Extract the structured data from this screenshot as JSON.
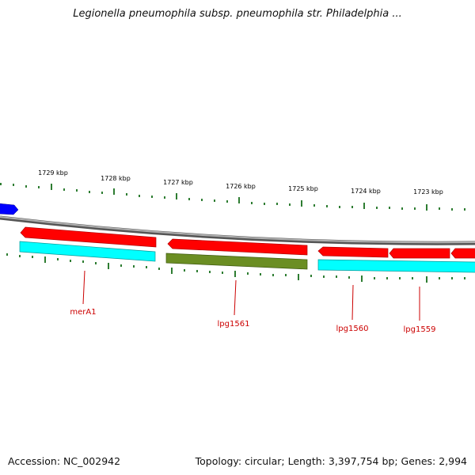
{
  "title": "Legionella pneumophila subsp. pneumophila str. Philadelphia ...",
  "footer": {
    "accession": "Accession: NC_002942",
    "topology": "Topology: circular; Length: 3,397,754 bp; Genes: 2,994"
  },
  "kbp_labels": [
    "1729 kbp",
    "1728 kbp",
    "1727 kbp",
    "1726 kbp",
    "1725 kbp",
    "1724 kbp",
    "1723 kbp"
  ],
  "gene_labels": [
    "merA1",
    "lpg1561",
    "lpg1560",
    "lpg1559"
  ],
  "colors": {
    "backbone": "#8c8c8c",
    "forward_cds": "#ff0000",
    "reverse_cds": "#00ffff",
    "rna_cds": "#6b8e23",
    "partial_gene": "#0000ff",
    "tick": "#2e7d32",
    "label": "#cc0000"
  }
}
